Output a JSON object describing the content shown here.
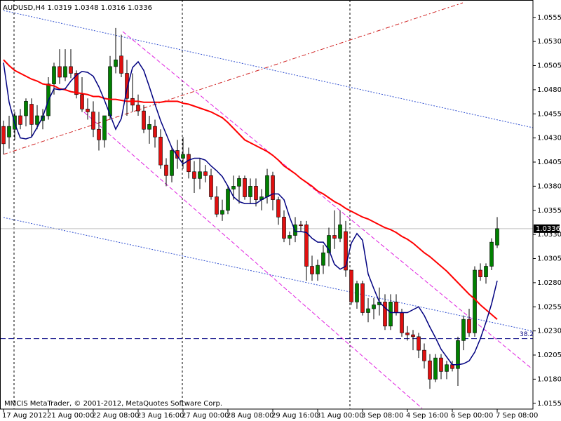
{
  "chart_data": {
    "type": "candlestick",
    "title": "AUDUSD,H4  1.0319 1.0348 1.0316 1.0336",
    "footer": "MMCIS MetaTrader, © 2001-2012, MetaQuotes Software Corp.",
    "categories": [
      "17 Aug 2012",
      null,
      null,
      null,
      null,
      null,
      null,
      null,
      "21 Aug 00:00",
      null,
      null,
      null,
      null,
      null,
      null,
      null,
      "22 Aug 08:00",
      null,
      null,
      null,
      null,
      null,
      null,
      null,
      "23 Aug 16:00",
      null,
      null,
      null,
      null,
      null,
      null,
      null,
      "27 Aug 00:00",
      null,
      null,
      null,
      null,
      null,
      null,
      null,
      "28 Aug 08:00",
      null,
      null,
      null,
      null,
      null,
      null,
      null,
      "29 Aug 16:00",
      null,
      null,
      null,
      null,
      null,
      null,
      null,
      "31 Aug 00:00",
      null,
      null,
      null,
      null,
      null,
      null,
      null,
      "3 Sep 08:00",
      null,
      null,
      null,
      null,
      null,
      null,
      null,
      "4 Sep 16:00",
      null,
      null,
      null,
      null,
      null,
      null,
      null,
      "6 Sep 00:00",
      null,
      null,
      null,
      null,
      null,
      null,
      null,
      "7 Sep 08:00"
    ],
    "open": [
      1.0442,
      1.0431,
      1.0439,
      1.0453,
      1.0453,
      1.0465,
      1.0444,
      1.0448,
      1.0453,
      1.0486,
      1.0504,
      1.0493,
      1.0504,
      1.0497,
      1.0475,
      1.046,
      1.0457,
      1.0439,
      1.0428,
      1.0453,
      1.0504,
      1.0515,
      1.0497,
      1.0471,
      1.0464,
      1.0458,
      1.0439,
      1.0442,
      1.0431,
      1.0402,
      1.0391,
      1.0417,
      1.0409,
      1.0413,
      1.0395,
      1.0388,
      1.0395,
      1.0391,
      1.0369,
      1.0351,
      1.0355,
      1.0377,
      1.038,
      1.0388,
      1.0369,
      1.038,
      1.0366,
      1.0369,
      1.0391,
      1.0366,
      1.0348,
      1.0326,
      1.0329,
      1.034,
      1.034,
      1.0297,
      1.0289,
      1.0298,
      1.0311,
      1.0329,
      1.0326,
      1.0333,
      1.0293,
      1.026,
      1.0279,
      1.0249,
      1.0253,
      1.0257,
      1.026,
      1.0235,
      1.026,
      1.0249,
      1.0228,
      1.0226,
      1.0224,
      1.021,
      1.0199,
      1.018,
      1.0202,
      1.0188,
      1.0195,
      1.0191,
      1.022,
      1.0242,
      1.0228,
      1.0293,
      1.0286,
      1.0297,
      1.0319
    ],
    "high": [
      1.0448,
      1.0453,
      1.0457,
      1.046,
      1.0471,
      1.0471,
      1.0464,
      1.046,
      1.0493,
      1.0508,
      1.0522,
      1.0522,
      1.0522,
      1.05,
      1.0493,
      1.0471,
      1.0468,
      1.0457,
      1.0453,
      1.0515,
      1.0544,
      1.0537,
      1.0511,
      1.0497,
      1.0475,
      1.0464,
      1.0453,
      1.0449,
      1.0439,
      1.0409,
      1.042,
      1.0428,
      1.0431,
      1.042,
      1.0406,
      1.0409,
      1.0402,
      1.0398,
      1.038,
      1.0366,
      1.038,
      1.0391,
      1.0391,
      1.0391,
      1.0388,
      1.0388,
      1.0377,
      1.0398,
      1.0395,
      1.0369,
      1.0355,
      1.0333,
      1.0348,
      1.0344,
      1.0344,
      1.0308,
      1.0304,
      1.0319,
      1.0337,
      1.0355,
      1.0355,
      1.0344,
      1.0293,
      1.0282,
      1.0282,
      1.0264,
      1.0264,
      1.0275,
      1.0268,
      1.0268,
      1.0268,
      1.0253,
      1.0235,
      1.0231,
      1.0228,
      1.0217,
      1.0206,
      1.0206,
      1.0206,
      1.0199,
      1.0199,
      1.0224,
      1.0246,
      1.0253,
      1.0297,
      1.03,
      1.03,
      1.0326,
      1.0348
    ],
    "low": [
      1.0413,
      1.0419,
      1.0428,
      1.0439,
      1.0442,
      1.0431,
      1.0439,
      1.0439,
      1.0449,
      1.0475,
      1.0486,
      1.0489,
      1.0492,
      1.0471,
      1.0457,
      1.0449,
      1.0431,
      1.0417,
      1.042,
      1.0449,
      1.0497,
      1.0493,
      1.0453,
      1.0457,
      1.0453,
      1.0435,
      1.0424,
      1.042,
      1.0398,
      1.038,
      1.0384,
      1.0398,
      1.0398,
      1.0388,
      1.0373,
      1.0377,
      1.0384,
      1.0366,
      1.0348,
      1.0344,
      1.0351,
      1.0366,
      1.0362,
      1.0366,
      1.0362,
      1.0359,
      1.0355,
      1.0362,
      1.0355,
      1.034,
      1.0322,
      1.0319,
      1.0322,
      1.0333,
      1.0282,
      1.0282,
      1.0282,
      1.0289,
      1.0297,
      1.0315,
      1.0322,
      1.0286,
      1.0257,
      1.0253,
      1.0246,
      1.0239,
      1.0242,
      1.0246,
      1.0231,
      1.0231,
      1.0246,
      1.0224,
      1.022,
      1.021,
      1.0202,
      1.0191,
      1.017,
      1.0177,
      1.018,
      1.018,
      1.0188,
      1.0173,
      1.021,
      1.0224,
      1.0224,
      1.0282,
      1.0279,
      1.0293,
      1.0316
    ],
    "close": [
      1.0424,
      1.0442,
      1.0453,
      1.0444,
      1.0468,
      1.0444,
      1.0453,
      1.0453,
      1.0486,
      1.0504,
      1.0493,
      1.0504,
      1.0497,
      1.0475,
      1.046,
      1.0457,
      1.0439,
      1.0428,
      1.0453,
      1.0504,
      1.0511,
      1.0497,
      1.0471,
      1.0464,
      1.0458,
      1.0439,
      1.0444,
      1.0431,
      1.0402,
      1.0391,
      1.0417,
      1.0409,
      1.0413,
      1.0395,
      1.0388,
      1.0395,
      1.0391,
      1.0369,
      1.0351,
      1.0355,
      1.0377,
      1.038,
      1.0388,
      1.0369,
      1.038,
      1.0366,
      1.0369,
      1.0391,
      1.0366,
      1.0348,
      1.0326,
      1.0329,
      1.034,
      1.0339,
      1.0297,
      1.0289,
      1.0298,
      1.0311,
      1.0329,
      1.0326,
      1.034,
      1.0293,
      1.026,
      1.0279,
      1.0249,
      1.0253,
      1.0257,
      1.026,
      1.0235,
      1.026,
      1.0249,
      1.0228,
      1.0226,
      1.0224,
      1.021,
      1.0199,
      1.018,
      1.0202,
      1.0188,
      1.0195,
      1.0191,
      1.022,
      1.0242,
      1.0228,
      1.0293,
      1.0286,
      1.0297,
      1.0322,
      1.0336
    ],
    "up_color": "#008000",
    "down_color": "#e01010",
    "indicators": [
      {
        "color": "#ff0000",
        "width": 2,
        "values": [
          1.0511,
          1.0505,
          1.05,
          1.0497,
          1.0494,
          1.0491,
          1.0489,
          1.0486,
          1.0485,
          1.0484,
          1.0481,
          1.048,
          1.0478,
          1.0477,
          1.0476,
          1.0475,
          1.0473,
          1.0473,
          1.0471,
          1.047,
          1.047,
          1.0469,
          1.0468,
          1.0468,
          1.0468,
          1.0467,
          1.0467,
          1.0467,
          1.0467,
          1.0468,
          1.0468,
          1.0468,
          1.0466,
          1.0465,
          1.0463,
          1.0461,
          1.0459,
          1.0457,
          1.0454,
          1.0451,
          1.0446,
          1.044,
          1.0434,
          1.0428,
          1.0425,
          1.0422,
          1.0419,
          1.0416,
          1.0412,
          1.0407,
          1.0401,
          1.0397,
          1.0393,
          1.0388,
          1.0384,
          1.038,
          1.0375,
          1.0372,
          1.0368,
          1.0364,
          1.0361,
          1.0357,
          1.0354,
          1.0351,
          1.0348,
          1.0346,
          1.0343,
          1.034,
          1.0337,
          1.0335,
          1.0332,
          1.0328,
          1.0325,
          1.0321,
          1.0316,
          1.0311,
          1.0307,
          1.0302,
          1.0297,
          1.0292,
          1.0286,
          1.028,
          1.0274,
          1.0268,
          1.0263,
          1.0257,
          1.0252,
          1.0247,
          1.0242
        ]
      },
      {
        "color": "#000080",
        "width": 1.5,
        "values": [
          1.0508,
          1.0467,
          1.0445,
          1.043,
          1.0429,
          1.0431,
          1.0441,
          1.0452,
          1.0469,
          1.0481,
          1.048,
          1.0481,
          1.0489,
          1.0495,
          1.0499,
          1.0498,
          1.0494,
          1.0483,
          1.0469,
          1.0454,
          1.0439,
          1.045,
          1.0481,
          1.0503,
          1.0509,
          1.05,
          1.0483,
          1.0465,
          1.0448,
          1.0434,
          1.042,
          1.0411,
          1.0403,
          1.0407,
          1.0409,
          1.0409,
          1.0407,
          1.0401,
          1.0396,
          1.039,
          1.038,
          1.0369,
          1.0364,
          1.0362,
          1.0362,
          1.0362,
          1.0366,
          1.0369,
          1.0372,
          1.0372,
          1.0366,
          1.0348,
          1.0333,
          1.0333,
          1.0332,
          1.0326,
          1.0322,
          1.0322,
          1.0314,
          1.0299,
          1.0294,
          1.0297,
          1.0321,
          1.0331,
          1.0324,
          1.0289,
          1.0274,
          1.026,
          1.0254,
          1.0249,
          1.0249,
          1.0249,
          1.0249,
          1.0252,
          1.0255,
          1.0246,
          1.0234,
          1.0223,
          1.0211,
          1.0203,
          1.0195,
          1.0195,
          1.0196,
          1.0199,
          1.0208,
          1.0222,
          1.0239,
          1.0258,
          1.0282
        ]
      }
    ],
    "bid": 1.0336,
    "fibo_level": 1.0222,
    "fibo_label": "38.2",
    "ylim": [
      1.0149,
      1.0573
    ],
    "yticks": [
      {
        "value": 1.0155,
        "label": "1.0155"
      },
      {
        "value": 1.018,
        "label": "1.0180"
      },
      {
        "value": 1.0205,
        "label": "1.0205"
      },
      {
        "value": 1.023,
        "label": "1.0230"
      },
      {
        "value": 1.0255,
        "label": "1.0255"
      },
      {
        "value": 1.028,
        "label": "1.0280"
      },
      {
        "value": 1.0305,
        "label": "1.0305"
      },
      {
        "value": 1.033,
        "label": "1.0330"
      },
      {
        "value": 1.0355,
        "label": "1.0355"
      },
      {
        "value": 1.038,
        "label": "1.0380"
      },
      {
        "value": 1.0405,
        "label": "1.0405"
      },
      {
        "value": 1.043,
        "label": "1.0430"
      },
      {
        "value": 1.0455,
        "label": "1.0455"
      },
      {
        "value": 1.048,
        "label": "1.0480"
      },
      {
        "value": 1.0505,
        "label": "1.0505"
      },
      {
        "value": 1.053,
        "label": "1.0530"
      },
      {
        "value": 1.0555,
        "label": "1.0555"
      }
    ]
  }
}
